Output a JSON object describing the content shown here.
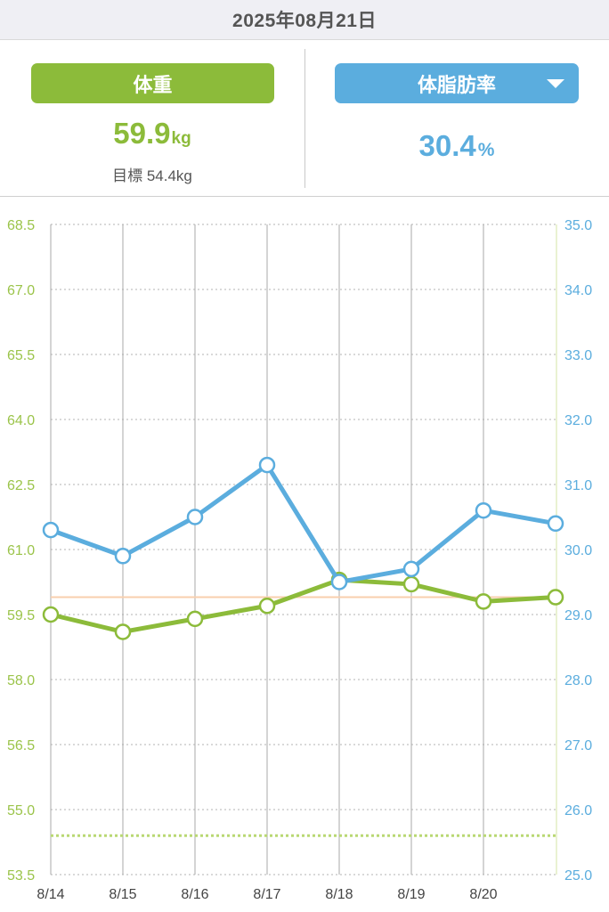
{
  "header": {
    "date": "2025年08月21日"
  },
  "weight_panel": {
    "button_label": "体重",
    "value": "59.9",
    "unit": "kg",
    "goal_label": "目標",
    "goal_value": "54.4kg"
  },
  "fat_panel": {
    "button_label": "体脂肪率",
    "dropdown_icon": "triangle-down-icon",
    "value": "30.4",
    "unit": "%"
  },
  "colors": {
    "weight": "#8cbb3a",
    "body_fat": "#5badde",
    "header_bg": "#efeff4",
    "grid": "#b3b3b3",
    "x_label": "#444444"
  },
  "chart_data": {
    "type": "line",
    "categories": [
      "8/14",
      "8/15",
      "8/16",
      "8/17",
      "8/18",
      "8/19",
      "8/20",
      ""
    ],
    "series": [
      {
        "name": "体重",
        "axis": "left",
        "color": "#8cbb3a",
        "values": [
          59.5,
          59.1,
          59.4,
          59.7,
          60.3,
          60.2,
          59.8,
          59.9
        ]
      },
      {
        "name": "体脂肪率",
        "axis": "right",
        "color": "#5badde",
        "values": [
          30.3,
          29.9,
          30.5,
          31.3,
          29.5,
          29.7,
          30.6,
          30.4
        ]
      }
    ],
    "left_axis": {
      "ylim": [
        53.5,
        68.5
      ],
      "ticks": [
        "68.5",
        "67.0",
        "65.5",
        "64.0",
        "62.5",
        "61.0",
        "59.5",
        "58.0",
        "56.5",
        "55.0",
        "53.5"
      ],
      "color": "#9bc44a"
    },
    "right_axis": {
      "ylim": [
        25.0,
        35.0
      ],
      "ticks": [
        "35.0",
        "34.0",
        "33.0",
        "32.0",
        "31.0",
        "30.0",
        "29.0",
        "28.0",
        "27.0",
        "26.0",
        "25.0"
      ],
      "color": "#5badde"
    },
    "goal_line": {
      "value": 54.4,
      "axis": "left",
      "color": "#b9d873",
      "style": "dotted"
    },
    "reference_line": {
      "value": 59.9,
      "axis": "left",
      "color": "#f8cfae",
      "style": "solid"
    },
    "grid": {
      "horizontal": "dotted",
      "vertical": "solid"
    }
  }
}
